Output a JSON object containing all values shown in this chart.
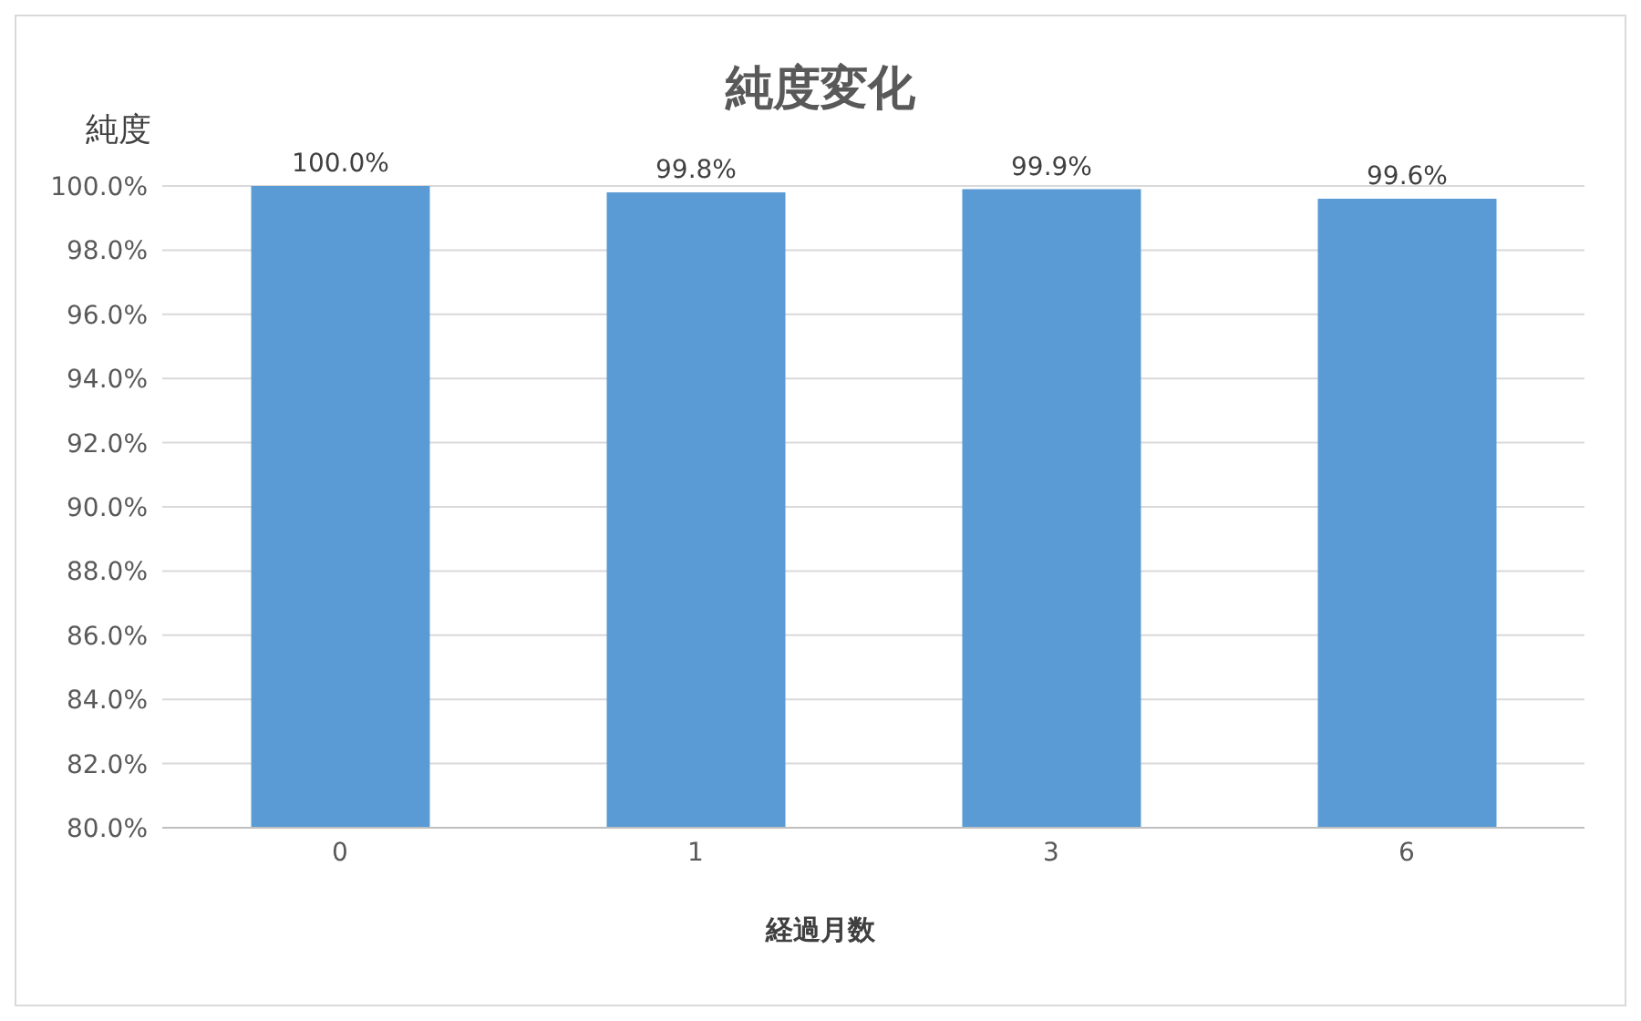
{
  "chart_data": {
    "type": "bar",
    "title": "純度変化",
    "xlabel": "経過月数",
    "ylabel": "純度",
    "categories": [
      "0",
      "1",
      "3",
      "6"
    ],
    "values": [
      100.0,
      99.8,
      99.9,
      99.6
    ],
    "value_labels": [
      "100.0%",
      "99.8%",
      "99.9%",
      "99.6%"
    ],
    "color": "#5b9bd5",
    "ylim": [
      80,
      100
    ],
    "yticks": [
      {
        "value": 80,
        "label": "80.0%"
      },
      {
        "value": 82,
        "label": "82.0%"
      },
      {
        "value": 84,
        "label": "84.0%"
      },
      {
        "value": 86,
        "label": "86.0%"
      },
      {
        "value": 88,
        "label": "88.0%"
      },
      {
        "value": 90,
        "label": "90.0%"
      },
      {
        "value": 92,
        "label": "92.0%"
      },
      {
        "value": 94,
        "label": "94.0%"
      },
      {
        "value": 96,
        "label": "96.0%"
      },
      {
        "value": 98,
        "label": "98.0%"
      },
      {
        "value": 100,
        "label": "100.0%"
      }
    ],
    "grid": "y",
    "legend": false
  }
}
